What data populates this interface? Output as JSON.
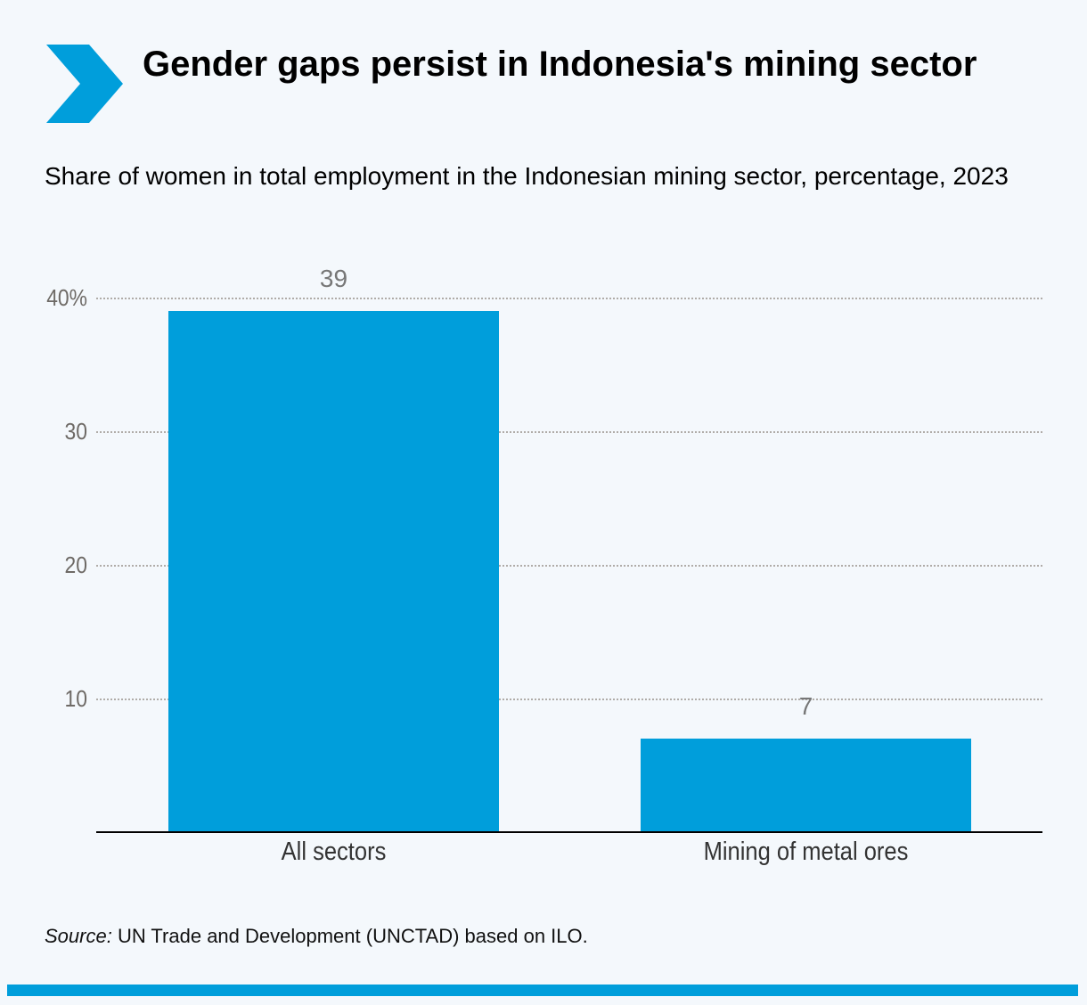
{
  "header": {
    "title": "Gender gaps persist in Indonesia's mining sector",
    "subtitle": "Share of women in total employment in the Indonesian mining sector, percentage, 2023",
    "logo_icon": "chevron-right-icon"
  },
  "colors": {
    "accent": "#009edb",
    "background": "#f4f8fc",
    "gridline": "#b0aca8",
    "tick_text": "#6e6a66"
  },
  "chart_data": {
    "type": "bar",
    "title": "Gender gaps persist in Indonesia's mining sector",
    "subtitle": "Share of women in total employment in the Indonesian mining sector, percentage, 2023",
    "categories": [
      "All sectors",
      "Mining of metal ores"
    ],
    "values": [
      39,
      7
    ],
    "data_labels": [
      "39",
      "7"
    ],
    "xlabel": "",
    "ylabel": "",
    "ylim": [
      0,
      40
    ],
    "yticks": [
      10,
      20,
      30,
      40
    ],
    "ytick_labels": [
      "10",
      "20",
      "30",
      "40%"
    ],
    "grid": true,
    "legend": null
  },
  "footer": {
    "source_label": "Source:",
    "source_text": " UN Trade and Development (UNCTAD) based on ILO."
  }
}
